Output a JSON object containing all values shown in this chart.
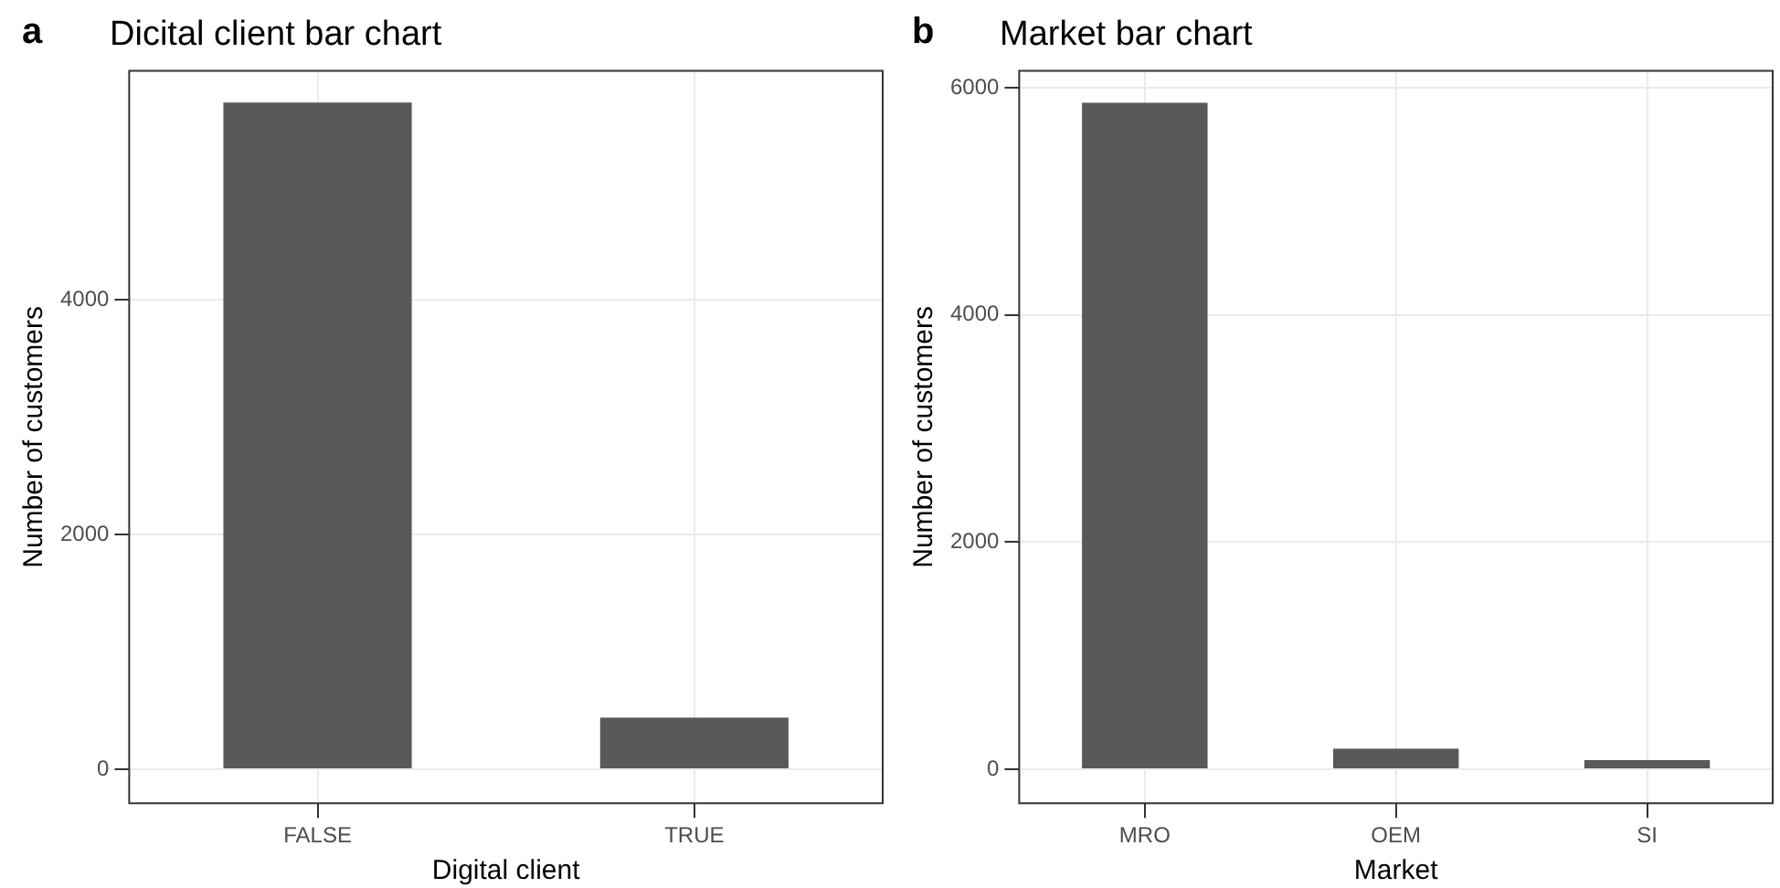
{
  "chart_data": [
    {
      "type": "bar",
      "title": "Dicital client bar chart",
      "annotations": [
        "a"
      ],
      "xlabel": "Digital client",
      "ylabel": "Number of customers",
      "categories": [
        "FALSE",
        "TRUE"
      ],
      "values": [
        5680,
        440
      ],
      "color": "#595959",
      "ylim": [
        -290,
        5950
      ],
      "yticks": [
        0,
        2000,
        4000
      ],
      "grid": true,
      "legend": false
    },
    {
      "type": "bar",
      "title": "Market bar chart",
      "annotations": [
        "b"
      ],
      "xlabel": "Market",
      "ylabel": "Number of customers",
      "categories": [
        "MRO",
        "OEM",
        "SI"
      ],
      "values": [
        5870,
        180,
        80
      ],
      "color": "#595959",
      "ylim": [
        -300,
        6150
      ],
      "yticks": [
        0,
        2000,
        4000,
        6000
      ],
      "grid": true,
      "legend": false
    }
  ]
}
